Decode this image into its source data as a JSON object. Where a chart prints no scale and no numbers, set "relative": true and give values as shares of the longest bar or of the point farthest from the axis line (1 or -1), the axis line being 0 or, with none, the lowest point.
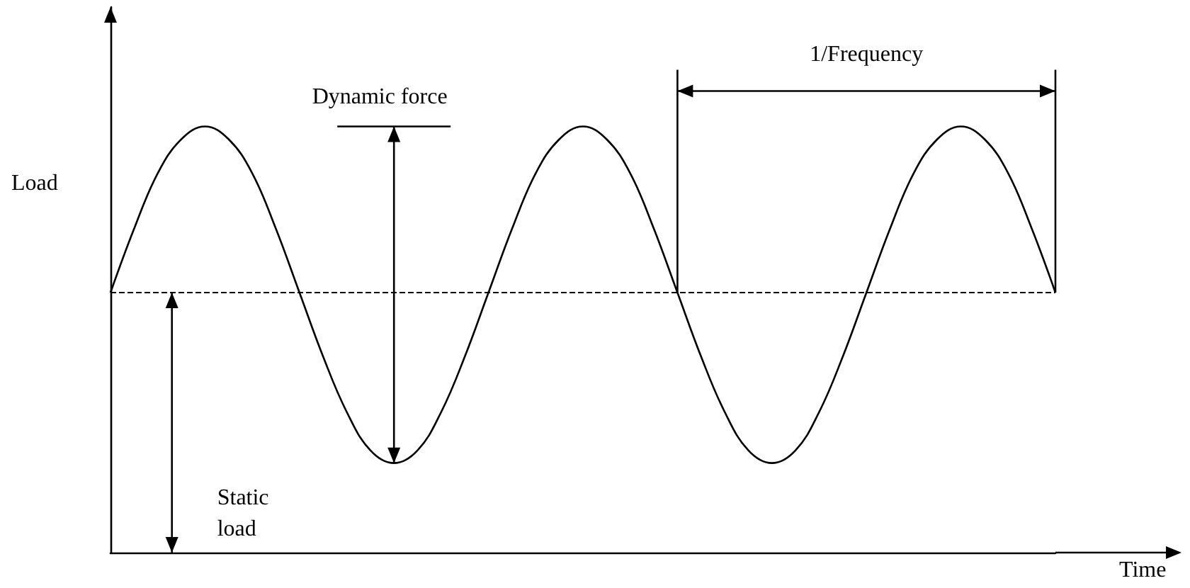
{
  "chart_data": {
    "type": "line",
    "relative": true,
    "xlabel": "Time",
    "ylabel": "Load",
    "categories": [
      null,
      null,
      null,
      null,
      null,
      null,
      null,
      null,
      null,
      null,
      null,
      null,
      null,
      null,
      null,
      null,
      null,
      null,
      null,
      null,
      null,
      null,
      null,
      null,
      null,
      null,
      null,
      null,
      null,
      null,
      null,
      null,
      null,
      null,
      null,
      null,
      null,
      null,
      null,
      null,
      null
    ],
    "series": [
      {
        "color": "#000000",
        "values": [
          0.61,
          0.76,
          0.89,
          0.97,
          1,
          0.97,
          0.89,
          0.76,
          0.61,
          0.46,
          0.33,
          0.24,
          0.21,
          0.24,
          0.33,
          0.46,
          0.61,
          0.76,
          0.89,
          0.97,
          1,
          0.97,
          0.89,
          0.76,
          0.61,
          0.46,
          0.33,
          0.24,
          0.21,
          0.24,
          0.33,
          0.46,
          0.61,
          0.76,
          0.89,
          0.97,
          1,
          0.97,
          0.89,
          0.76,
          0.61
        ]
      }
    ],
    "ref_lines": [
      {
        "axis": "y",
        "value": 0.61,
        "color": "#000000",
        "line_style": "dashed"
      }
    ],
    "annotations": [
      "Dynamic force",
      "1/Frequency",
      "Static load"
    ],
    "marker": "none",
    "line_style": "solid",
    "grid": false
  }
}
